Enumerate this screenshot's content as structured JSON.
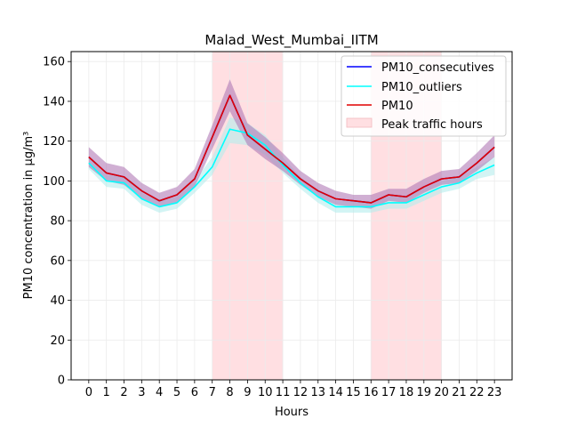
{
  "chart_data": {
    "type": "line",
    "title": "Malad_West_Mumbai_IITM",
    "xlabel": "Hours",
    "ylabel": "PM10 concentration in µg/m³",
    "x": [
      0,
      1,
      2,
      3,
      4,
      5,
      6,
      7,
      8,
      9,
      10,
      11,
      12,
      13,
      14,
      15,
      16,
      17,
      18,
      19,
      20,
      21,
      22,
      23
    ],
    "x_tick_labels": [
      "0",
      "1",
      "2",
      "3",
      "4",
      "5",
      "6",
      "7",
      "8",
      "9",
      "10",
      "11",
      "12",
      "13",
      "14",
      "15",
      "16",
      "17",
      "18",
      "19",
      "20",
      "21",
      "22",
      "23"
    ],
    "y_ticks": [
      0,
      20,
      40,
      60,
      80,
      100,
      120,
      140,
      160
    ],
    "xlim": [
      -1.0,
      24.0
    ],
    "ylim": [
      0,
      165
    ],
    "grid": true,
    "legend_location": "top-right",
    "shaded_regions": [
      {
        "label": "Peak traffic hours",
        "x_start": 7,
        "x_end": 11,
        "color": "#ffdfe2"
      },
      {
        "x_start": 16,
        "x_end": 20,
        "color": "#ffdfe2"
      }
    ],
    "series": [
      {
        "name": "PM10_consecutives",
        "color": "#0000ff",
        "values": [
          112,
          104,
          102,
          95,
          90,
          93,
          101,
          122,
          143,
          123,
          116,
          109,
          101,
          95,
          91,
          90,
          89,
          93,
          92,
          97,
          101,
          102,
          109,
          117
        ]
      },
      {
        "name": "PM10_outliers",
        "color": "#00ffff",
        "values": [
          109,
          100,
          99,
          91,
          87,
          89,
          97,
          107,
          126,
          124,
          118,
          108,
          99,
          92,
          87,
          87,
          87,
          89,
          89,
          93,
          97,
          99,
          104,
          108
        ],
        "band_lower": [
          106,
          97,
          96,
          88,
          84,
          86,
          94,
          103,
          119,
          118,
          113,
          104,
          96,
          89,
          84,
          84,
          84,
          86,
          86,
          90,
          94,
          96,
          101,
          103
        ],
        "band_upper": [
          112,
          103,
          102,
          94,
          90,
          92,
          100,
          112,
          132,
          129,
          123,
          112,
          102,
          95,
          90,
          90,
          90,
          92,
          92,
          96,
          100,
          102,
          107,
          112
        ],
        "band_color": "#b5ecec"
      },
      {
        "name": "PM10",
        "color": "#e00000",
        "values": [
          112,
          104,
          102,
          95,
          90,
          93,
          101,
          122,
          143,
          123,
          116,
          109,
          101,
          95,
          91,
          90,
          89,
          93,
          92,
          97,
          101,
          102,
          109,
          117
        ],
        "band_lower": [
          107,
          100,
          98,
          91,
          87,
          89,
          97,
          116,
          135,
          118,
          111,
          105,
          98,
          92,
          88,
          87,
          86,
          90,
          89,
          94,
          98,
          99,
          105,
          112
        ],
        "band_upper": [
          117,
          109,
          107,
          99,
          94,
          97,
          106,
          128,
          151,
          129,
          122,
          114,
          105,
          99,
          95,
          93,
          93,
          96,
          96,
          101,
          105,
          106,
          114,
          123
        ],
        "band_color": "#b07ab5"
      }
    ]
  }
}
